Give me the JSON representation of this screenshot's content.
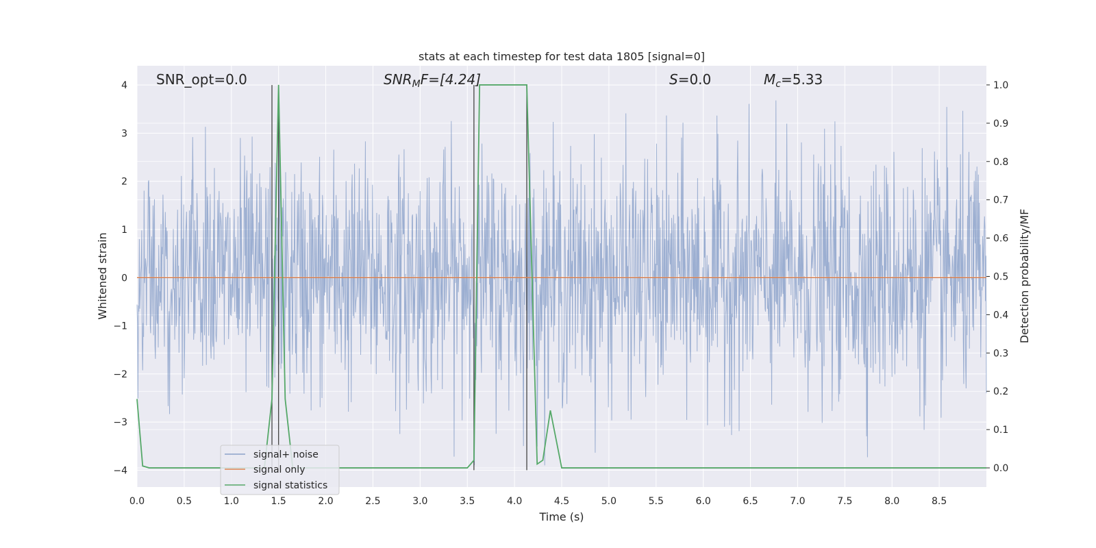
{
  "chart_data": {
    "type": "line",
    "title": "stats at each timestep for test data 1805 [signal=0]",
    "xlabel": "Time (s)",
    "ylabel": "Whitened strain",
    "ylabel_right": "Detection probability/MF",
    "xlim": [
      0.0,
      9.0
    ],
    "ylim": [
      -4.35,
      4.4
    ],
    "ylim_right": [
      -0.05,
      1.05
    ],
    "x_ticks": [
      0.0,
      0.5,
      1.0,
      1.5,
      2.0,
      2.5,
      3.0,
      3.5,
      4.0,
      4.5,
      5.0,
      5.5,
      6.0,
      6.5,
      7.0,
      7.5,
      8.0,
      8.5
    ],
    "x_tick_labels": [
      "0.0",
      "0.5",
      "1.0",
      "1.5",
      "2.0",
      "2.5",
      "3.0",
      "3.5",
      "4.0",
      "4.5",
      "5.0",
      "5.5",
      "6.0",
      "6.5",
      "7.0",
      "7.5",
      "8.0",
      "8.5"
    ],
    "y_ticks": [
      4,
      3,
      2,
      1,
      0,
      -1,
      -2,
      -3,
      -4
    ],
    "y_tick_labels": [
      "4",
      "3",
      "2",
      "1",
      "0",
      "−1",
      "−2",
      "−3",
      "−4"
    ],
    "y_ticks_right": [
      1.0,
      0.9,
      0.8,
      0.7,
      0.6,
      0.5,
      0.4,
      0.3,
      0.2,
      0.1,
      0.0
    ],
    "y_tick_labels_right": [
      "1.0",
      "0.9",
      "0.8",
      "0.7",
      "0.6",
      "0.5",
      "0.4",
      "0.3",
      "0.2",
      "0.1",
      "0.0"
    ],
    "grid": true,
    "legend_position": "lower-left",
    "annotations": {
      "snr_opt": "SNR_opt=0.0",
      "snr_mf_sym": "SNR",
      "snr_mf_sub": "M",
      "snr_mf_rest": "F=[4.24]",
      "s_sym": "S",
      "s_rest": "=0.0",
      "mc_sym": "M",
      "mc_sub": "c",
      "mc_rest": "=5.33"
    },
    "vertical_markers": [
      1.43,
      1.5,
      3.57,
      4.13
    ],
    "series": [
      {
        "name": "signal+ noise",
        "color": "#4c72b0",
        "axis": "left",
        "noise_sigma": 0.8,
        "range_approx": [
          -3.9,
          4.0
        ],
        "x_step": 0.005
      },
      {
        "name": "signal only",
        "color": "#dd8452",
        "axis": "left",
        "x": [
          0.0,
          9.0
        ],
        "y": [
          0.0,
          0.0
        ]
      },
      {
        "name": "signal statistics",
        "color": "#55a868",
        "axis": "right",
        "x": [
          0.0,
          0.06,
          0.13,
          0.5,
          1.0,
          1.35,
          1.43,
          1.5,
          1.57,
          1.65,
          2.0,
          3.0,
          3.5,
          3.57,
          3.63,
          4.0,
          4.13,
          4.24,
          4.3,
          4.38,
          4.5,
          5.0,
          6.0,
          7.0,
          8.0,
          9.0
        ],
        "y": [
          0.18,
          0.005,
          0.0,
          0.0,
          0.0,
          0.0,
          0.18,
          1.0,
          0.18,
          0.0,
          0.0,
          0.0,
          0.0,
          0.02,
          1.0,
          1.0,
          1.0,
          0.01,
          0.02,
          0.15,
          0.0,
          0.0,
          0.0,
          0.0,
          0.0,
          0.0
        ]
      }
    ]
  }
}
